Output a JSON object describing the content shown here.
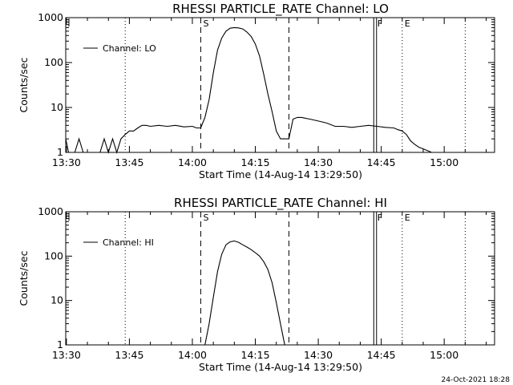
{
  "timestamp": "24-Oct-2021 18:28",
  "chart_data": [
    {
      "type": "line",
      "title": "RHESSI PARTICLE_RATE Channel: LO",
      "xlabel": "Start Time (14-Aug-14 13:29:50)",
      "ylabel": "Counts/sec",
      "y_scale": "log",
      "ylim": [
        1,
        1000
      ],
      "xlim": [
        "13:29:50",
        "15:12:00"
      ],
      "x_ticks": [
        "13:30",
        "13:45",
        "14:00",
        "14:15",
        "14:30",
        "14:45",
        "15:00"
      ],
      "y_ticks": [
        "1",
        "10",
        "100",
        "1000"
      ],
      "legend": {
        "label": "Channel: LO",
        "position": "top-left"
      },
      "markers": [
        {
          "label": "S",
          "time": "14:02",
          "style": "dashed"
        },
        {
          "label": "",
          "time": "14:23",
          "style": "dashed"
        },
        {
          "label": "F",
          "time": "14:43:30",
          "style": "double"
        },
        {
          "label": "E",
          "time": "14:50",
          "style": "dotted"
        }
      ],
      "extra_dotted_lines": [
        "13:44",
        "15:05"
      ],
      "series": [
        {
          "name": "Channel: LO",
          "x": [
            "13:29:50",
            "13:30:30",
            "13:31",
            "13:32",
            "13:33",
            "13:34",
            "13:35",
            "13:36",
            "13:37",
            "13:38",
            "13:39",
            "13:40",
            "13:41",
            "13:42",
            "13:43",
            "13:44",
            "13:45",
            "13:46",
            "13:47",
            "13:48",
            "13:49",
            "13:50",
            "13:52",
            "13:54",
            "13:56",
            "13:58",
            "14:00",
            "14:01",
            "14:02",
            "14:03",
            "14:04",
            "14:05",
            "14:06",
            "14:07",
            "14:08",
            "14:09",
            "14:10",
            "14:11",
            "14:12",
            "14:13",
            "14:14",
            "14:15",
            "14:16",
            "14:17",
            "14:18",
            "14:19",
            "14:20",
            "14:21",
            "14:22",
            "14:23",
            "14:24",
            "14:25",
            "14:26",
            "14:28",
            "14:30",
            "14:32",
            "14:34",
            "14:36",
            "14:38",
            "14:40",
            "14:42",
            "14:44",
            "14:46",
            "14:48",
            "14:49",
            "14:50",
            "14:51",
            "14:52",
            "14:53",
            "14:54",
            "14:55",
            "14:56",
            "14:57",
            "14:58",
            "14:59",
            "15:00",
            "15:01",
            "15:02",
            "15:03"
          ],
          "values": [
            2,
            1,
            1,
            1,
            2,
            1,
            1,
            1,
            1,
            1,
            2,
            1,
            2,
            1,
            2,
            2.5,
            3,
            3,
            3.5,
            4,
            4,
            3.8,
            4,
            3.8,
            4,
            3.7,
            3.8,
            3.5,
            3.5,
            6,
            15,
            60,
            190,
            350,
            500,
            580,
            600,
            590,
            560,
            480,
            380,
            260,
            140,
            55,
            20,
            8,
            3,
            2,
            2,
            2,
            5.5,
            6,
            6,
            5.5,
            5,
            4.5,
            3.8,
            3.8,
            3.6,
            3.8,
            4,
            3.8,
            3.6,
            3.5,
            3.2,
            3,
            2.5,
            1.8,
            1.5,
            1.3,
            1.2,
            1.1,
            1,
            1,
            1,
            1,
            1,
            1,
            1
          ]
        }
      ]
    },
    {
      "type": "line",
      "title": "RHESSI PARTICLE_RATE Channel: HI",
      "xlabel": "Start Time (14-Aug-14 13:29:50)",
      "ylabel": "Counts/sec",
      "y_scale": "log",
      "ylim": [
        1,
        1000
      ],
      "xlim": [
        "13:29:50",
        "15:12:00"
      ],
      "x_ticks": [
        "13:30",
        "13:45",
        "14:00",
        "14:15",
        "14:30",
        "14:45",
        "15:00"
      ],
      "y_ticks": [
        "1",
        "10",
        "100",
        "1000"
      ],
      "legend": {
        "label": "Channel: HI",
        "position": "top-left"
      },
      "markers": [
        {
          "label": "S",
          "time": "14:02",
          "style": "dashed"
        },
        {
          "label": "",
          "time": "14:23",
          "style": "dashed"
        },
        {
          "label": "F",
          "time": "14:43:30",
          "style": "double"
        },
        {
          "label": "E",
          "time": "14:50",
          "style": "dotted"
        }
      ],
      "extra_dotted_lines": [
        "13:44",
        "15:05"
      ],
      "series": [
        {
          "name": "Channel: HI",
          "x": [
            "14:03",
            "14:04",
            "14:05",
            "14:06",
            "14:07",
            "14:08",
            "14:09",
            "14:10",
            "14:11",
            "14:12",
            "14:13",
            "14:14",
            "14:15",
            "14:16",
            "14:17",
            "14:18",
            "14:19",
            "14:20",
            "14:21",
            "14:22"
          ],
          "values": [
            1,
            3,
            12,
            45,
            110,
            180,
            210,
            220,
            205,
            180,
            160,
            140,
            120,
            100,
            75,
            50,
            25,
            9,
            3,
            1
          ]
        }
      ]
    }
  ]
}
